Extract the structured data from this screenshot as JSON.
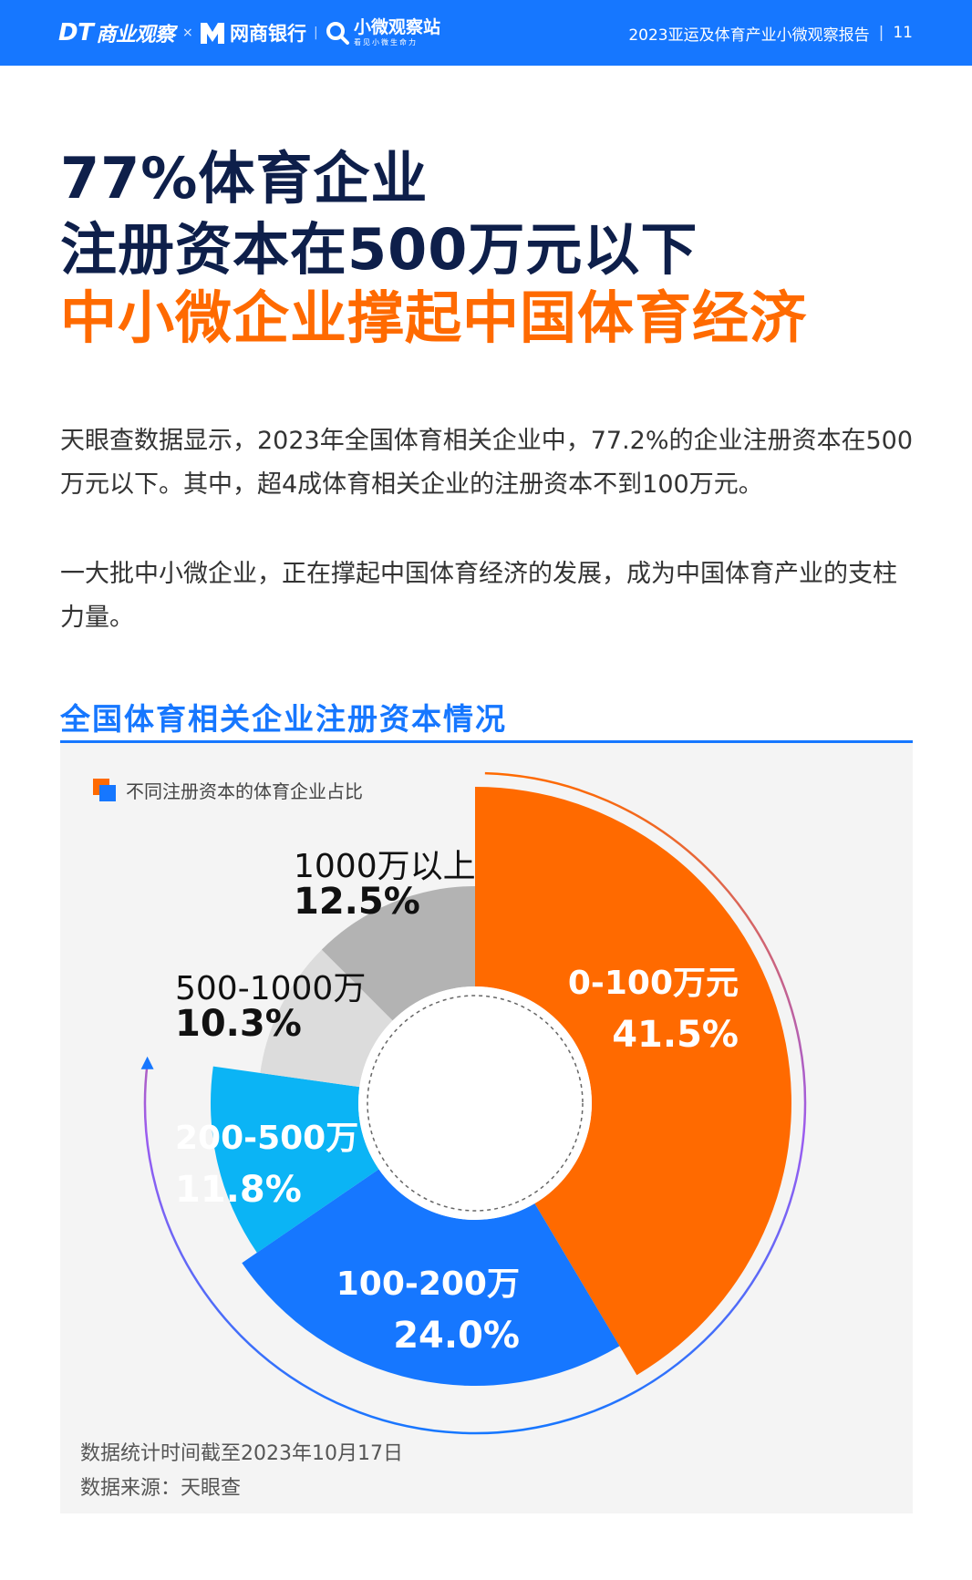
{
  "header": {
    "brand_dt": "DT",
    "brand_dt_suffix": "商业观察",
    "brand_x": "×",
    "brand_mybank": "网商银行",
    "brand_sep": "|",
    "brand_xw": "小微观察站",
    "brand_xw_sub": "看见小微生命力",
    "report_title": "2023亚运及体育产业小微观察报告",
    "page_number": "11"
  },
  "title": {
    "line1": "77%体育企业",
    "line2": "注册资本在500万元以下",
    "line3": "中小微企业撑起中国体育经济"
  },
  "paragraphs": {
    "p1": "天眼查数据显示，2023年全国体育相关企业中，77.2%的企业注册资本在500万元以下。其中，超4成体育相关企业的注册资本不到100万元。",
    "p2": "一大批中小微企业，正在撑起中国体育经济的发展，成为中国体育产业的支柱力量。"
  },
  "section": {
    "title": "全国体育相关企业注册资本情况"
  },
  "chart_data": {
    "type": "pie",
    "title": "全国体育相关企业注册资本情况",
    "legend": "不同注册资本的体育企业占比",
    "legend_position": "top-left",
    "slices": [
      {
        "label": "0-100万元",
        "value": 41.5,
        "display": "41.5%",
        "color": "#ff6a00"
      },
      {
        "label": "100-200万",
        "value": 24.0,
        "display": "24.0%",
        "color": "#1677ff"
      },
      {
        "label": "200-500万",
        "value": 11.8,
        "display": "11.8%",
        "color": "#0bb4f5"
      },
      {
        "label": "500-1000万",
        "value": 10.3,
        "display": "10.3%",
        "color": "#dcdcdc"
      },
      {
        "label": "1000万以上",
        "value": 12.5,
        "display": "12.5%",
        "color": "#b3b3b3"
      }
    ]
  },
  "notes": {
    "date": "数据统计时间截至2023年10月17日",
    "source": "数据来源：天眼查"
  }
}
